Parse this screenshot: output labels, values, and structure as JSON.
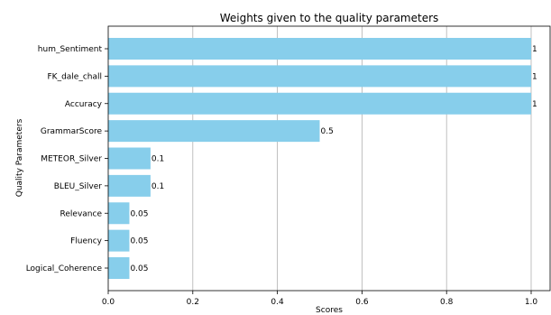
{
  "chart_data": {
    "type": "bar",
    "orientation": "horizontal",
    "title": "Weights given to the quality parameters",
    "xlabel": "Scores",
    "ylabel": "Quality Parameters",
    "categories": [
      "hum_Sentiment",
      "FK_dale_chall",
      "Accuracy",
      "GrammarScore",
      "METEOR_Silver",
      "BLEU_Silver",
      "Relevance",
      "Fluency",
      "Logical_Coherence"
    ],
    "values": [
      1,
      1,
      1,
      0.5,
      0.1,
      0.1,
      0.05,
      0.05,
      0.05
    ],
    "xlim": [
      0,
      1.05
    ],
    "xticks": [
      "0.0",
      "0.2",
      "0.4",
      "0.6",
      "0.8",
      "1.0"
    ],
    "grid": "vertical",
    "bar_color": "#87CEEB"
  }
}
